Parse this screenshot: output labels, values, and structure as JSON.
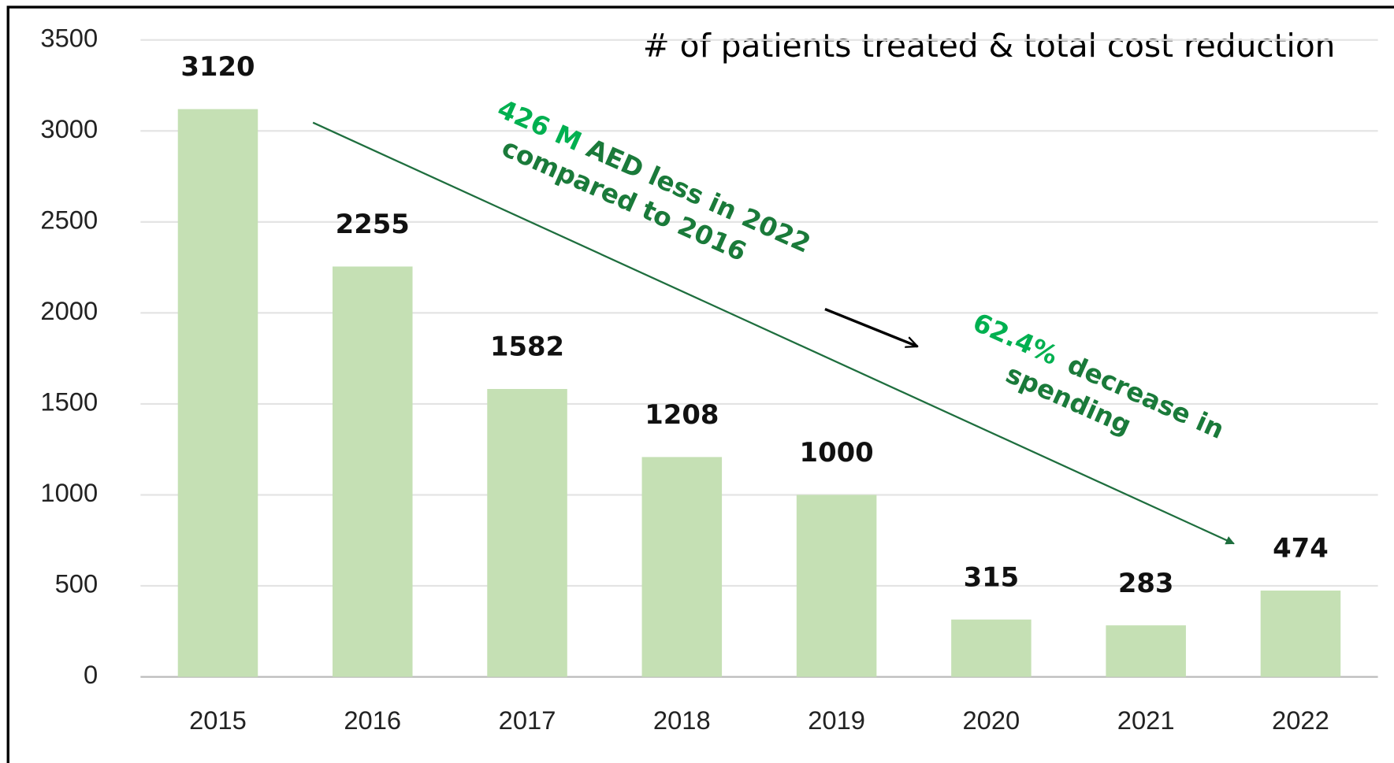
{
  "chart_data": {
    "type": "bar",
    "title": "# of patients treated & total cost reduction",
    "categories": [
      "2015",
      "2016",
      "2017",
      "2018",
      "2019",
      "2020",
      "2021",
      "2022"
    ],
    "values": [
      3120,
      2255,
      1582,
      1208,
      1000,
      315,
      283,
      474
    ],
    "color": "#c5e0b4",
    "ylim": [
      0,
      3500
    ],
    "yticks": [
      0,
      500,
      1000,
      1500,
      2000,
      2500,
      3000,
      3500
    ],
    "grid": true,
    "annotations": [
      {
        "parts": [
          "426 M",
          "AED  less in 2022",
          "compared to 2016"
        ],
        "colors": [
          "#00b050",
          "#1a7a3a",
          "#1a7a3a"
        ]
      },
      {
        "parts": [
          "62.4%",
          "decrease in",
          "spending"
        ],
        "colors": [
          "#00b050",
          "#1a7a3a",
          "#1a7a3a"
        ]
      }
    ]
  }
}
